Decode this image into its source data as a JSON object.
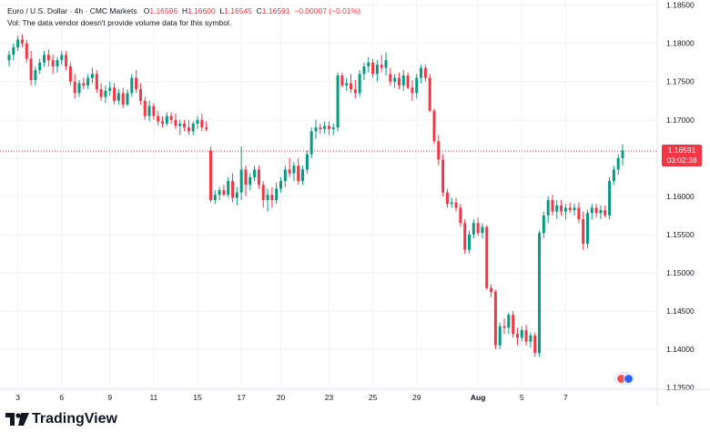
{
  "header": {
    "symbol": "Euro / U.S. Dollar · 4h · CMC Markets",
    "o_label": "O",
    "o_value": "1.16596",
    "h_label": "H",
    "h_value": "1.16600",
    "l_label": "L",
    "l_value": "1.16545",
    "c_label": "C",
    "c_value": "1.16591",
    "change": "−0.00007 (−0.01%)",
    "vol_note": "Vol: The data vendor doesn't provide volume data for this symbol."
  },
  "last_price": {
    "price": "1.16591",
    "countdown": "03:02:38"
  },
  "brand": {
    "name": "TradingView"
  },
  "colors": {
    "up": "#089981",
    "down": "#f23645",
    "grid": "#f0f3fa",
    "text": "#131722"
  },
  "chart_data": {
    "type": "candlestick",
    "y_ticks": [
      "1.18500",
      "1.18000",
      "1.17500",
      "1.17000",
      "1.16500",
      "1.16000",
      "1.15500",
      "1.15000",
      "1.14500",
      "1.14000",
      "1.13500"
    ],
    "ylim": [
      1.135,
      1.1852
    ],
    "x_ticks": [
      {
        "label": "3",
        "slot": 2
      },
      {
        "label": "6",
        "slot": 12
      },
      {
        "label": "9",
        "slot": 23
      },
      {
        "label": "11",
        "slot": 33
      },
      {
        "label": "15",
        "slot": 43
      },
      {
        "label": "17",
        "slot": 53
      },
      {
        "label": "20",
        "slot": 62
      },
      {
        "label": "23",
        "slot": 73
      },
      {
        "label": "25",
        "slot": 83
      },
      {
        "label": "29",
        "slot": 93
      },
      {
        "label": "Aug",
        "slot": 107
      },
      {
        "label": "5",
        "slot": 117
      },
      {
        "label": "7",
        "slot": 127
      }
    ],
    "candles": [
      [
        1.1778,
        1.179,
        1.177,
        1.1785
      ],
      [
        1.1785,
        1.18,
        1.1778,
        1.1795
      ],
      [
        1.1795,
        1.181,
        1.179,
        1.1805
      ],
      [
        1.1805,
        1.1812,
        1.1795,
        1.18
      ],
      [
        1.18,
        1.1805,
        1.1775,
        1.178
      ],
      [
        1.178,
        1.179,
        1.1745,
        1.1752
      ],
      [
        1.1752,
        1.177,
        1.1745,
        1.1765
      ],
      [
        1.1765,
        1.178,
        1.176,
        1.1775
      ],
      [
        1.1775,
        1.179,
        1.177,
        1.1785
      ],
      [
        1.1785,
        1.1792,
        1.177,
        1.1778
      ],
      [
        1.1778,
        1.1785,
        1.176,
        1.177
      ],
      [
        1.177,
        1.1782,
        1.1762,
        1.1778
      ],
      [
        1.1778,
        1.179,
        1.1772,
        1.1785
      ],
      [
        1.1785,
        1.179,
        1.1765,
        1.177
      ],
      [
        1.177,
        1.1775,
        1.1745,
        1.175
      ],
      [
        1.175,
        1.176,
        1.1728,
        1.1735
      ],
      [
        1.1735,
        1.1752,
        1.173,
        1.1748
      ],
      [
        1.1748,
        1.1755,
        1.174,
        1.1745
      ],
      [
        1.1745,
        1.176,
        1.174,
        1.1755
      ],
      [
        1.1755,
        1.1768,
        1.1748,
        1.176
      ],
      [
        1.176,
        1.1765,
        1.1735,
        1.174
      ],
      [
        1.174,
        1.1748,
        1.1725,
        1.173
      ],
      [
        1.173,
        1.1745,
        1.1722,
        1.1738
      ],
      [
        1.1738,
        1.175,
        1.1732,
        1.1742
      ],
      [
        1.1742,
        1.1748,
        1.172,
        1.1725
      ],
      [
        1.1725,
        1.174,
        1.172,
        1.1735
      ],
      [
        1.1735,
        1.1742,
        1.1715,
        1.172
      ],
      [
        1.172,
        1.174,
        1.1718,
        1.1735
      ],
      [
        1.1735,
        1.176,
        1.173,
        1.1755
      ],
      [
        1.1755,
        1.1765,
        1.1735,
        1.174
      ],
      [
        1.174,
        1.1748,
        1.172,
        1.1725
      ],
      [
        1.1725,
        1.173,
        1.17,
        1.1705
      ],
      [
        1.1705,
        1.1725,
        1.1698,
        1.1718
      ],
      [
        1.1718,
        1.1722,
        1.17,
        1.1705
      ],
      [
        1.1705,
        1.1712,
        1.1692,
        1.1698
      ],
      [
        1.1698,
        1.1705,
        1.169,
        1.1695
      ],
      [
        1.1695,
        1.171,
        1.1692,
        1.1705
      ],
      [
        1.1705,
        1.171,
        1.1695,
        1.17
      ],
      [
        1.17,
        1.1708,
        1.1688,
        1.1692
      ],
      [
        1.1692,
        1.17,
        1.168,
        1.1695
      ],
      [
        1.1695,
        1.17,
        1.1685,
        1.169
      ],
      [
        1.169,
        1.17,
        1.168,
        1.1685
      ],
      [
        1.1685,
        1.1698,
        1.168,
        1.1695
      ],
      [
        1.1695,
        1.1705,
        1.1688,
        1.17
      ],
      [
        1.17,
        1.1708,
        1.1685,
        1.169
      ],
      [
        1.169,
        1.1698,
        1.1685,
        1.1688
      ],
      [
        1.166,
        1.1665,
        1.1592,
        1.1595
      ],
      [
        1.1595,
        1.1608,
        1.159,
        1.1602
      ],
      [
        1.1602,
        1.1612,
        1.1595,
        1.1608
      ],
      [
        1.1608,
        1.1615,
        1.16,
        1.1602
      ],
      [
        1.1602,
        1.1625,
        1.1598,
        1.162
      ],
      [
        1.162,
        1.163,
        1.1592,
        1.1598
      ],
      [
        1.1598,
        1.1612,
        1.1588,
        1.1605
      ],
      [
        1.1605,
        1.1665,
        1.1595,
        1.1635
      ],
      [
        1.1635,
        1.164,
        1.16,
        1.1615
      ],
      [
        1.1615,
        1.163,
        1.1608,
        1.1625
      ],
      [
        1.1625,
        1.164,
        1.162,
        1.1635
      ],
      [
        1.1635,
        1.164,
        1.161,
        1.1615
      ],
      [
        1.1615,
        1.162,
        1.1585,
        1.1595
      ],
      [
        1.1595,
        1.161,
        1.158,
        1.1602
      ],
      [
        1.1602,
        1.1612,
        1.1585,
        1.1595
      ],
      [
        1.1595,
        1.1618,
        1.159,
        1.161
      ],
      [
        1.161,
        1.1625,
        1.1605,
        1.162
      ],
      [
        1.162,
        1.164,
        1.1612,
        1.1635
      ],
      [
        1.1635,
        1.165,
        1.1625,
        1.163
      ],
      [
        1.163,
        1.1645,
        1.162,
        1.164
      ],
      [
        1.164,
        1.165,
        1.1615,
        1.162
      ],
      [
        1.162,
        1.164,
        1.1615,
        1.1635
      ],
      [
        1.1635,
        1.166,
        1.163,
        1.1655
      ],
      [
        1.1655,
        1.169,
        1.165,
        1.1685
      ],
      [
        1.1685,
        1.17,
        1.1675,
        1.169
      ],
      [
        1.169,
        1.1695,
        1.1682,
        1.1688
      ],
      [
        1.1688,
        1.1698,
        1.1682,
        1.1692
      ],
      [
        1.1692,
        1.1698,
        1.168,
        1.1688
      ],
      [
        1.1688,
        1.1695,
        1.168,
        1.169
      ],
      [
        1.169,
        1.1762,
        1.1685,
        1.1758
      ],
      [
        1.1758,
        1.1762,
        1.1742,
        1.1745
      ],
      [
        1.1745,
        1.1755,
        1.1738,
        1.1748
      ],
      [
        1.1748,
        1.176,
        1.1735,
        1.174
      ],
      [
        1.174,
        1.1752,
        1.1728,
        1.1735
      ],
      [
        1.1735,
        1.1765,
        1.173,
        1.176
      ],
      [
        1.176,
        1.1775,
        1.1752,
        1.177
      ],
      [
        1.177,
        1.1782,
        1.1762,
        1.1775
      ],
      [
        1.1775,
        1.178,
        1.1755,
        1.176
      ],
      [
        1.176,
        1.1778,
        1.175,
        1.1772
      ],
      [
        1.1772,
        1.1785,
        1.1762,
        1.1768
      ],
      [
        1.1768,
        1.1788,
        1.1758,
        1.1778
      ],
      [
        1.176,
        1.1768,
        1.1745,
        1.175
      ],
      [
        1.175,
        1.176,
        1.1742,
        1.1755
      ],
      [
        1.1755,
        1.1762,
        1.174,
        1.1745
      ],
      [
        1.1745,
        1.1765,
        1.1738,
        1.1758
      ],
      [
        1.1758,
        1.1762,
        1.174,
        1.1742
      ],
      [
        1.1742,
        1.1752,
        1.1725,
        1.1735
      ],
      [
        1.1735,
        1.176,
        1.1728,
        1.1755
      ],
      [
        1.1755,
        1.1772,
        1.1748,
        1.1768
      ],
      [
        1.1768,
        1.1772,
        1.175,
        1.1755
      ],
      [
        1.1755,
        1.176,
        1.171,
        1.1712
      ],
      [
        1.1712,
        1.1715,
        1.1668,
        1.1672
      ],
      [
        1.1672,
        1.168,
        1.164,
        1.1648
      ],
      [
        1.1648,
        1.1655,
        1.16,
        1.1605
      ],
      [
        1.1605,
        1.161,
        1.1585,
        1.159
      ],
      [
        1.159,
        1.1598,
        1.1585,
        1.1592
      ],
      [
        1.1592,
        1.1598,
        1.158,
        1.1585
      ],
      [
        1.1585,
        1.159,
        1.156,
        1.1565
      ],
      [
        1.1565,
        1.157,
        1.1525,
        1.153
      ],
      [
        1.153,
        1.1555,
        1.1525,
        1.155
      ],
      [
        1.155,
        1.157,
        1.1545,
        1.1565
      ],
      [
        1.1565,
        1.1572,
        1.1548,
        1.1552
      ],
      [
        1.1552,
        1.1565,
        1.1545,
        1.156
      ],
      [
        1.156,
        1.1562,
        1.1478,
        1.148
      ],
      [
        1.148,
        1.1485,
        1.1468,
        1.1475
      ],
      [
        1.1475,
        1.1478,
        1.14,
        1.1405
      ],
      [
        1.1405,
        1.1435,
        1.14,
        1.143
      ],
      [
        1.143,
        1.144,
        1.142,
        1.1428
      ],
      [
        1.1428,
        1.1448,
        1.142,
        1.1445
      ],
      [
        1.1445,
        1.145,
        1.1415,
        1.142
      ],
      [
        1.142,
        1.1428,
        1.1405,
        1.1415
      ],
      [
        1.1415,
        1.143,
        1.141,
        1.1425
      ],
      [
        1.1425,
        1.1432,
        1.1405,
        1.141
      ],
      [
        1.141,
        1.1422,
        1.1402,
        1.1418
      ],
      [
        1.1418,
        1.1422,
        1.139,
        1.1395
      ],
      [
        1.1395,
        1.1555,
        1.139,
        1.1552
      ],
      [
        1.1552,
        1.158,
        1.1545,
        1.1575
      ],
      [
        1.1575,
        1.16,
        1.1565,
        1.1595
      ],
      [
        1.1595,
        1.1602,
        1.1575,
        1.158
      ],
      [
        1.158,
        1.1595,
        1.157,
        1.1588
      ],
      [
        1.1588,
        1.1595,
        1.1575,
        1.158
      ],
      [
        1.158,
        1.159,
        1.157,
        1.1585
      ],
      [
        1.1585,
        1.1592,
        1.1578,
        1.1582
      ],
      [
        1.1582,
        1.159,
        1.1575,
        1.1585
      ],
      [
        1.1585,
        1.1592,
        1.1565,
        1.157
      ],
      [
        1.157,
        1.158,
        1.153,
        1.1538
      ],
      [
        1.1538,
        1.1582,
        1.1532,
        1.1578
      ],
      [
        1.1578,
        1.159,
        1.157,
        1.1585
      ],
      [
        1.1585,
        1.159,
        1.1572,
        1.1578
      ],
      [
        1.1578,
        1.1588,
        1.157,
        1.1582
      ],
      [
        1.1582,
        1.1588,
        1.1572,
        1.1575
      ],
      [
        1.1575,
        1.1625,
        1.157,
        1.162
      ],
      [
        1.162,
        1.164,
        1.1615,
        1.1635
      ],
      [
        1.1635,
        1.1655,
        1.1628,
        1.165
      ],
      [
        1.165,
        1.1668,
        1.164,
        1.166
      ]
    ]
  }
}
